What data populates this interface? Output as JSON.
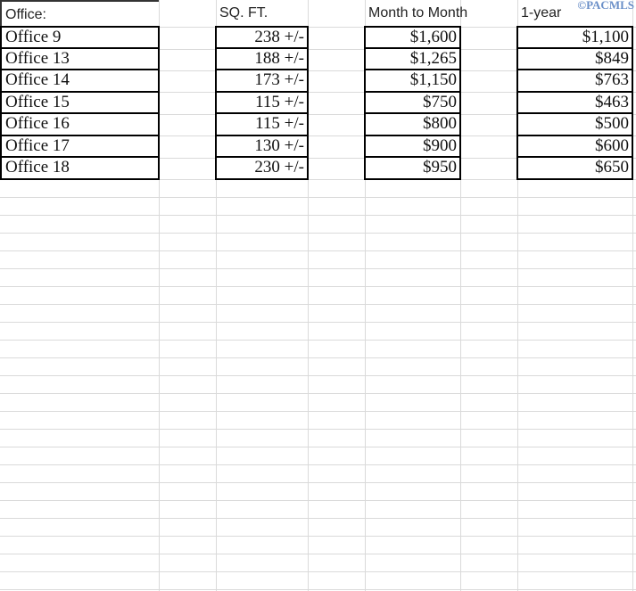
{
  "watermark": "©PACMLS",
  "headers": {
    "office": "Office:",
    "sqft": "SQ. FT.",
    "month_to_month": "Month to Month",
    "one_year": "1-year"
  },
  "rows": [
    {
      "office": "Office 9",
      "sqft": "238 +/-",
      "month_to_month": "$1,600",
      "one_year": "$1,100"
    },
    {
      "office": "Office 13",
      "sqft": "188 +/-",
      "month_to_month": "$1,265",
      "one_year": "$849"
    },
    {
      "office": "Office 14",
      "sqft": "173 +/-",
      "month_to_month": "$1,150",
      "one_year": "$763"
    },
    {
      "office": "Office 15",
      "sqft": "115 +/-",
      "month_to_month": "$750",
      "one_year": "$463"
    },
    {
      "office": "Office 16",
      "sqft": "115 +/-",
      "month_to_month": "$800",
      "one_year": "$500"
    },
    {
      "office": "Office 17",
      "sqft": "130 +/-",
      "month_to_month": "$900",
      "one_year": "$600"
    },
    {
      "office": "Office 18",
      "sqft": "230 +/-",
      "month_to_month": "$950",
      "one_year": "$650"
    }
  ]
}
